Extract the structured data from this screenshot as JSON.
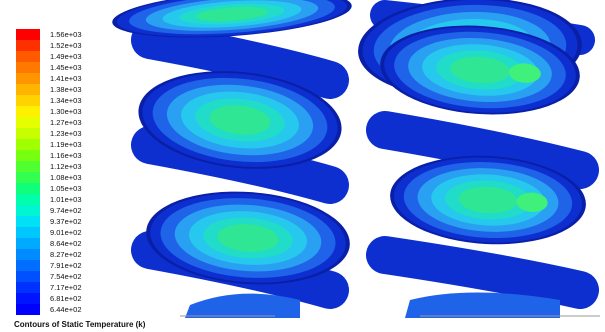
{
  "legend": {
    "labels": [
      "1.56e+03",
      "1.52e+03",
      "1.49e+03",
      "1.45e+03",
      "1.41e+03",
      "1.38e+03",
      "1.34e+03",
      "1.30e+03",
      "1.27e+03",
      "1.23e+03",
      "1.19e+03",
      "1.16e+03",
      "1.12e+03",
      "1.08e+03",
      "1.05e+03",
      "1.01e+03",
      "9.74e+02",
      "9.37e+02",
      "9.01e+02",
      "8.64e+02",
      "8.27e+02",
      "7.91e+02",
      "7.54e+02",
      "7.17e+02",
      "6.81e+02",
      "6.44e+02"
    ],
    "colors": [
      "#ff0000",
      "#ff3000",
      "#ff5a00",
      "#ff7800",
      "#ff9600",
      "#ffb400",
      "#ffd200",
      "#fff000",
      "#e6ff00",
      "#c8ff00",
      "#a0ff00",
      "#78ff10",
      "#50ff30",
      "#32ff50",
      "#10ff7a",
      "#00ffa8",
      "#00f5d2",
      "#00e1f5",
      "#00c8ff",
      "#00aaff",
      "#008cff",
      "#006eff",
      "#0050ff",
      "#0032ff",
      "#0014ff",
      "#0000ff"
    ]
  },
  "caption": "Contours of Static Temperature (k)",
  "palette": {
    "dark_blue": "#0d2fcf",
    "mid_blue": "#1f63e8",
    "light_blue": "#2aa0f2",
    "cyan": "#26c8ee",
    "aqua": "#20dcc8",
    "green": "#2fe695",
    "hot_green": "#3ff07a",
    "edge_blue": "#0a1fa8"
  }
}
